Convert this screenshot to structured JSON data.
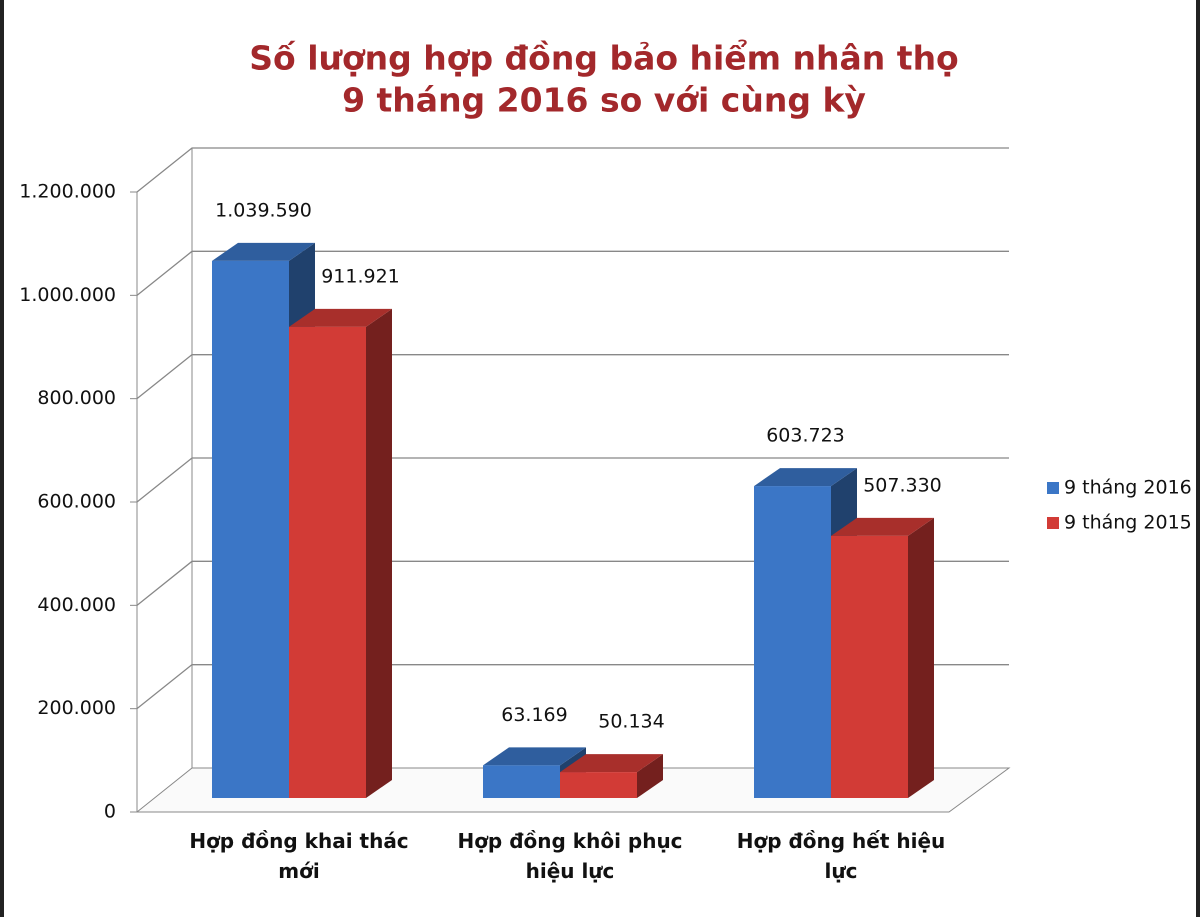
{
  "chart_data": {
    "type": "bar3d",
    "title": [
      "Số lượng hợp đồng bảo hiểm nhân thọ",
      "9 tháng 2016 so với cùng kỳ"
    ],
    "categories": [
      "Hợp đồng khai thác mới",
      "Hợp đồng khôi phục hiệu lực",
      "Hợp đồng hết hiệu lực"
    ],
    "series": [
      {
        "name": "9 tháng 2016",
        "color": "#3b76c6",
        "values": [
          1039590,
          63169,
          603723
        ],
        "value_labels": [
          "1.039.590",
          "63.169",
          "603.723"
        ]
      },
      {
        "name": "9 tháng 2015",
        "color": "#d23b36",
        "values": [
          911921,
          50134,
          507330
        ],
        "value_labels": [
          "911.921",
          "50.134",
          "507.330"
        ]
      }
    ],
    "ylim": [
      0,
      1200000
    ],
    "yticks": [
      0,
      {
        "value": 200000,
        "label": "200.000"
      },
      {
        "value": 400000,
        "label": "400.000"
      },
      {
        "value": 600000,
        "label": "600.000"
      },
      {
        "value": 800000,
        "label": "800.000"
      },
      {
        "value": 1000000,
        "label": "1.000.000"
      },
      {
        "value": 1200000,
        "label": "1.200.000"
      }
    ],
    "grid": true,
    "legend": "right"
  }
}
